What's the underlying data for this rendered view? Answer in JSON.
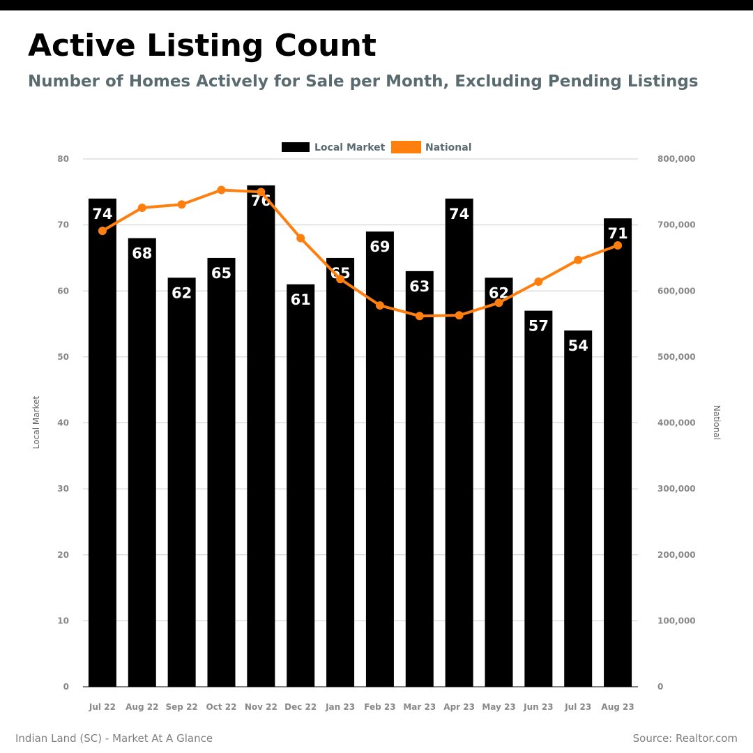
{
  "header": {
    "title": "Active Listing Count",
    "subtitle": "Number of Homes Actively for Sale per Month, Excluding Pending Listings"
  },
  "footer": {
    "left": "Indian Land (SC) - Market At A Glance",
    "right": "Source: Realtor.com"
  },
  "colors": {
    "local": "#000000",
    "national": "#ff7f0e",
    "top_bar": "#000000",
    "subtitle": "#5a6b70"
  },
  "chart_data": {
    "type": "bar",
    "categories": [
      "Jul 22",
      "Aug 22",
      "Sep 22",
      "Oct 22",
      "Nov 22",
      "Dec 22",
      "Jan 23",
      "Feb 23",
      "Mar 23",
      "Apr 23",
      "May 23",
      "Jun 23",
      "Jul 23",
      "Aug 23"
    ],
    "series": [
      {
        "name": "Local Market",
        "type": "bar",
        "axis": "left",
        "values": [
          74,
          68,
          62,
          65,
          76,
          61,
          65,
          69,
          63,
          74,
          62,
          57,
          54,
          71
        ]
      },
      {
        "name": "National",
        "type": "line",
        "axis": "right",
        "values": [
          691000,
          726000,
          731000,
          753000,
          750000,
          680000,
          618000,
          578000,
          562000,
          563000,
          582000,
          614000,
          647000,
          669000
        ]
      }
    ],
    "ylabel": "Local Market",
    "ylabel_right": "National",
    "ylim": [
      0,
      80
    ],
    "ylim_right": [
      0,
      800000
    ],
    "yticks": [
      "0",
      "10",
      "20",
      "30",
      "40",
      "50",
      "60",
      "70",
      "80"
    ],
    "yticks_right": [
      "0",
      "100,000",
      "200,000",
      "300,000",
      "400,000",
      "500,000",
      "600,000",
      "700,000",
      "800,000"
    ],
    "grid": true,
    "legend": "top-center"
  }
}
